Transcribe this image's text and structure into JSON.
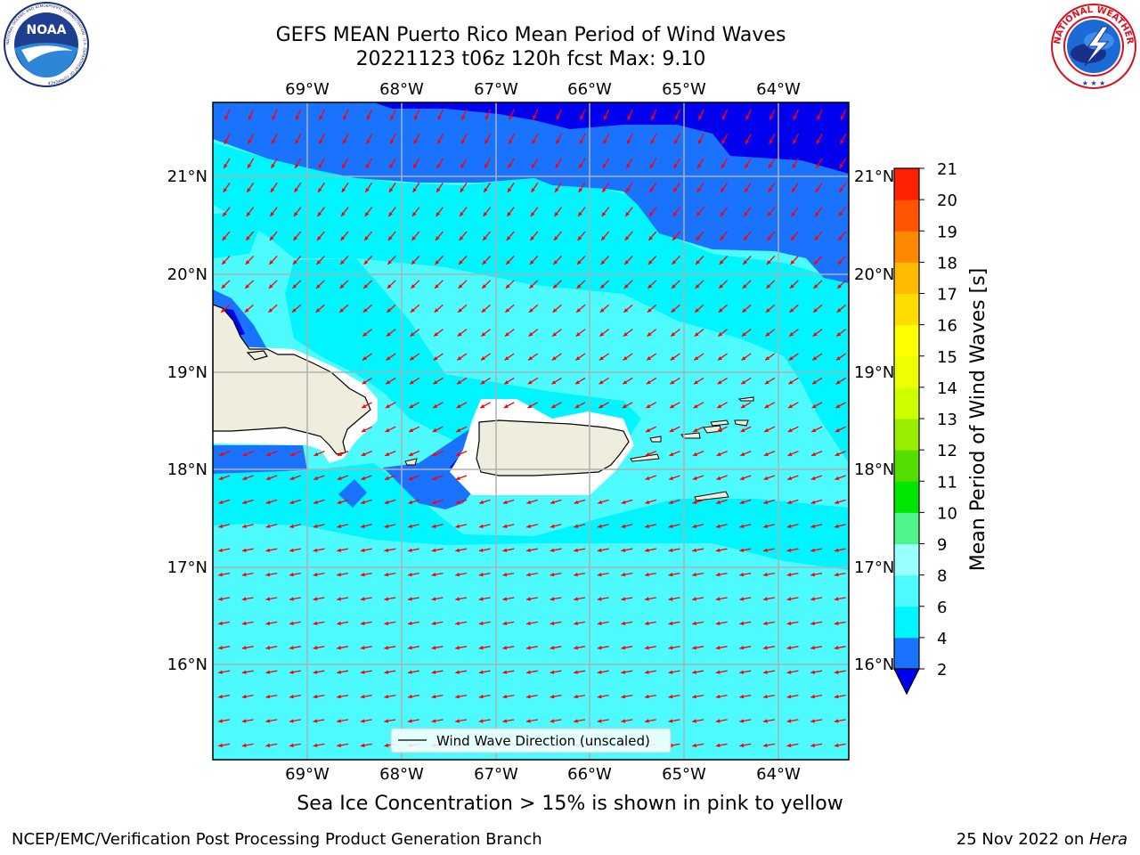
{
  "header": {
    "title_line1": "GEFS MEAN Puerto Rico Mean Period of Wind Waves",
    "title_line2": "20221123 t06z 120h fcst   Max: 9.10"
  },
  "logos": {
    "noaa": {
      "text": "NOAA",
      "ring_text": "NATIONAL OCEANIC AND ATMOSPHERIC ADMINISTRATION · U.S. DEPARTMENT OF COMMERCE"
    },
    "nws": {
      "ring_text": "NATIONAL WEATHER SERVICE"
    }
  },
  "map": {
    "lon_labels": [
      "69°W",
      "68°W",
      "67°W",
      "66°W",
      "65°W",
      "64°W"
    ],
    "lat_labels": [
      "21°N",
      "20°N",
      "19°N",
      "18°N",
      "17°N",
      "16°N"
    ],
    "legend_label": "Wind Wave Direction (unscaled)",
    "colors": {
      "band_2_4": "#1a73ff",
      "band_4_6": "#00f5ff",
      "band_6_8": "#4dfbff",
      "below_2": "#0000ee",
      "land": "#efedde",
      "arrow": "#ff0000"
    }
  },
  "colorbar": {
    "label": "Mean Period of Wind Waves [s]",
    "ticks": [
      "2",
      "4",
      "6",
      "8",
      "9",
      "10",
      "11",
      "12",
      "13",
      "14",
      "15",
      "16",
      "17",
      "18",
      "19",
      "20",
      "21"
    ],
    "colors": [
      "#1a73ff",
      "#00f5ff",
      "#4dfbff",
      "#99ffff",
      "#4df58a",
      "#00e600",
      "#55dd00",
      "#99ee00",
      "#ccff00",
      "#eeff00",
      "#ffff00",
      "#ffdd00",
      "#ffbb00",
      "#ff8800",
      "#ff5500",
      "#ff2200"
    ],
    "extend_color": "#0000ee"
  },
  "footer": {
    "subtitle": "Sea Ice Concentration > 15% is shown in pink to yellow",
    "left": "NCEP/EMC/Verification Post Processing Product Generation Branch",
    "right_prefix": "25 Nov 2022 on ",
    "right_system": "Hera"
  }
}
